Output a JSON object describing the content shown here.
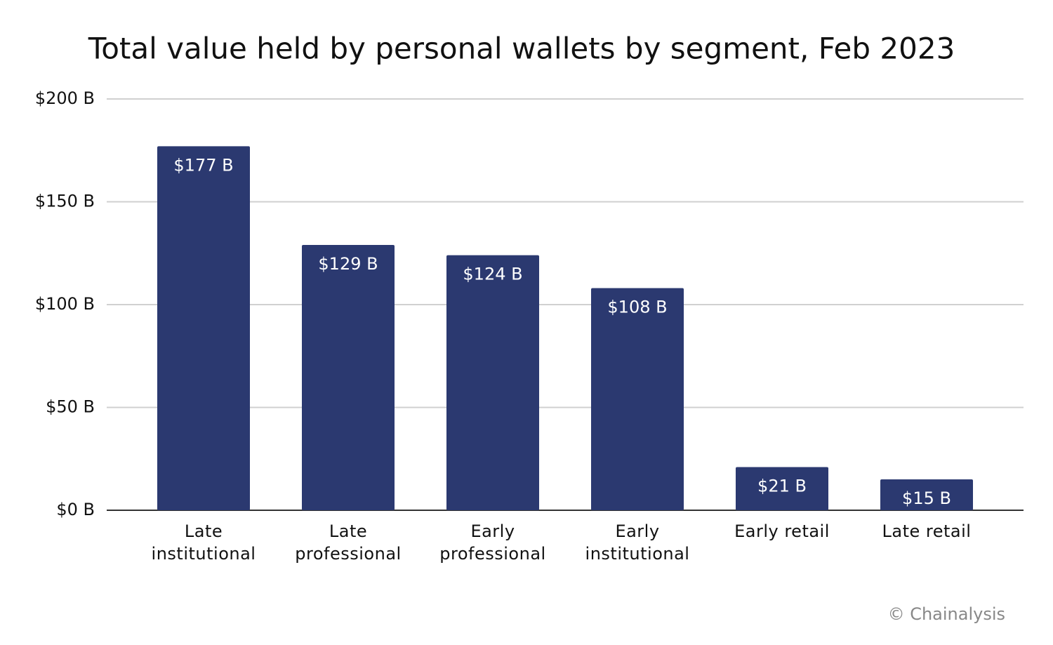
{
  "chart_data": {
    "type": "bar",
    "title": "Total value held by personal wallets by segment, Feb 2023",
    "categories": [
      "Late institutional",
      "Late professional",
      "Early professional",
      "Early institutional",
      "Early retail",
      "Late retail"
    ],
    "values": [
      177,
      129,
      124,
      108,
      21,
      15
    ],
    "value_labels": [
      "$177 B",
      "$129 B",
      "$124 B",
      "$108 B",
      "$21 B",
      "$15 B"
    ],
    "color": "#2b3970",
    "ylim": [
      0,
      200
    ],
    "yticks": [
      {
        "value": 0,
        "label": "$0 B"
      },
      {
        "value": 50,
        "label": "$50 B"
      },
      {
        "value": 100,
        "label": "$100 B"
      },
      {
        "value": 150,
        "label": "$150 B"
      },
      {
        "value": 200,
        "label": "$200 B"
      }
    ],
    "grid": true,
    "credit": "© Chainalysis"
  }
}
